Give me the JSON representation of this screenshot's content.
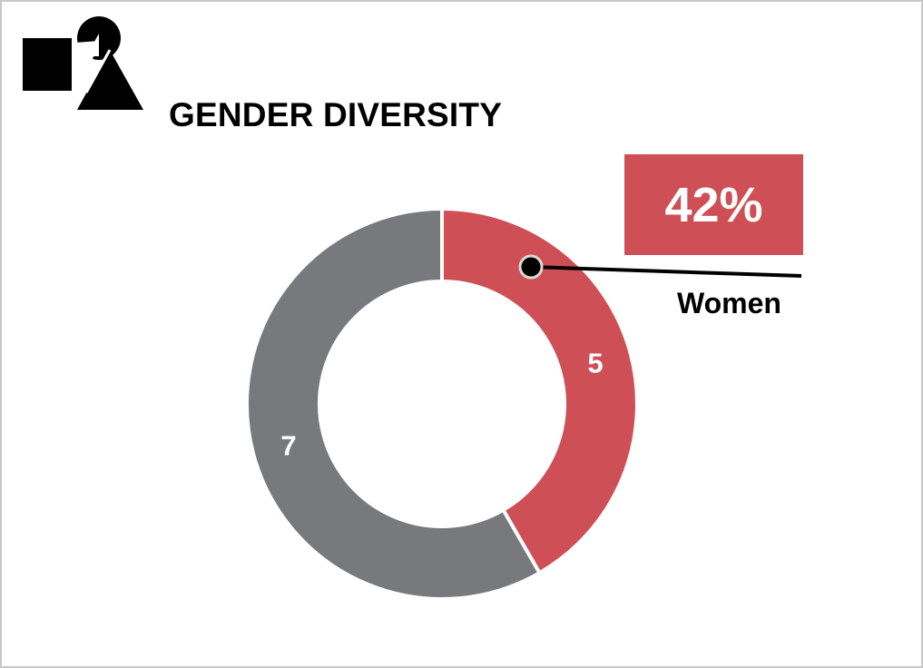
{
  "title": "GENDER DIVERSITY",
  "highlight": {
    "percent_label": "42%",
    "series_label": "Women"
  },
  "colors": {
    "women": "#cf4f56",
    "men": "#78797d",
    "separator": "#ffffff"
  },
  "icons": {
    "logo": "shapes-logo-icon"
  },
  "chart_data": {
    "type": "pie",
    "title": "GENDER DIVERSITY",
    "categories": [
      "Women",
      ""
    ],
    "values": [
      5,
      7
    ],
    "data_labels": [
      "5",
      "7"
    ],
    "donut": true,
    "legend": "right",
    "callout": {
      "category": "Women",
      "text": "42%"
    }
  }
}
